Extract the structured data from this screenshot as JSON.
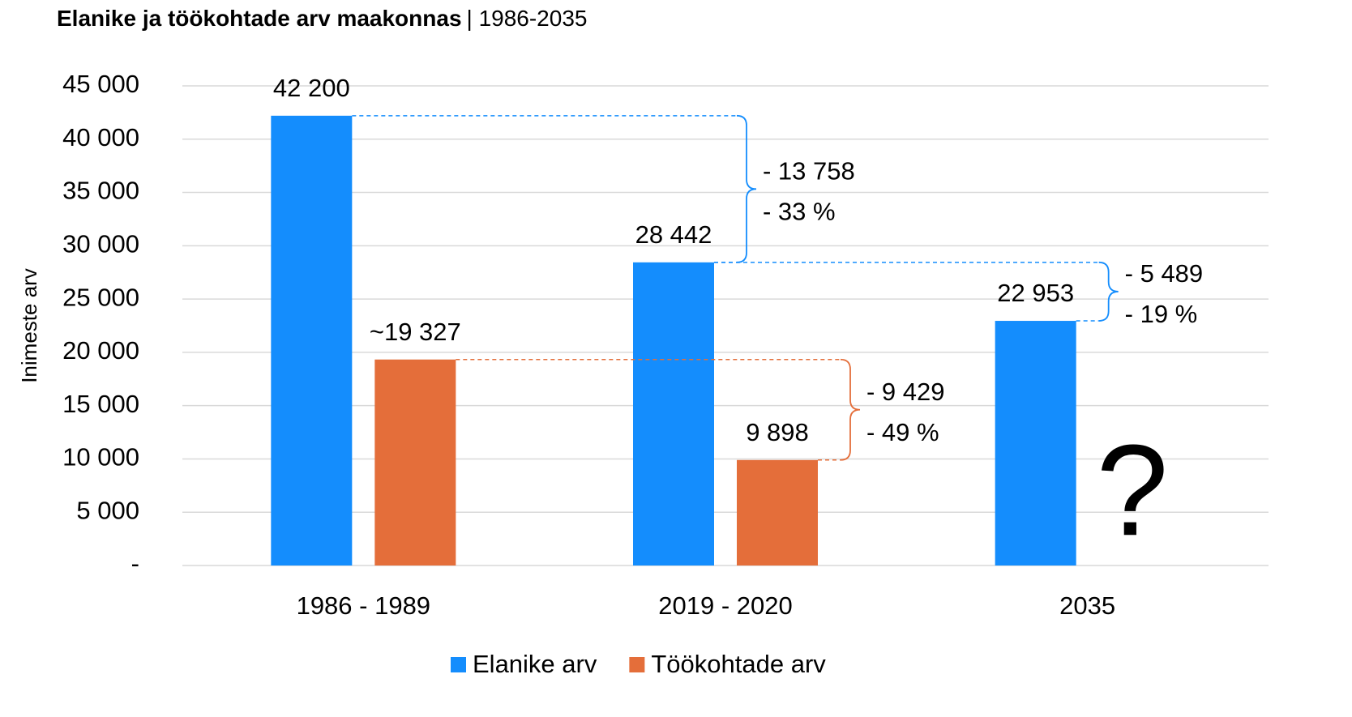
{
  "chart_data": {
    "type": "bar",
    "title": "Elanike ja töökohtade arv maakonnas",
    "subtitle": "| 1986-2035",
    "y_label": "Inimeste arv",
    "categories": [
      "1986 - 1989",
      "2019 - 2020",
      "2035"
    ],
    "series": [
      {
        "name": "Elanike arv",
        "color": "#148dfd",
        "values": [
          42200,
          28442,
          22953
        ],
        "value_labels": [
          "42 200",
          "28 442",
          "22 953"
        ]
      },
      {
        "name": "Töökohtade arv",
        "color": "#e46e3a",
        "values": [
          19327,
          9898,
          null
        ],
        "value_labels": [
          "~19 327",
          "9 898",
          null
        ]
      }
    ],
    "ylim": [
      0,
      45000
    ],
    "yticks": [
      {
        "value": 0,
        "label": "-"
      },
      {
        "value": 5000,
        "label": "5 000"
      },
      {
        "value": 10000,
        "label": "10 000"
      },
      {
        "value": 15000,
        "label": "15 000"
      },
      {
        "value": 20000,
        "label": "20 000"
      },
      {
        "value": 25000,
        "label": "25 000"
      },
      {
        "value": 30000,
        "label": "30 000"
      },
      {
        "value": 35000,
        "label": "35 000"
      },
      {
        "value": 40000,
        "label": "40 000"
      },
      {
        "value": 45000,
        "label": "45 000"
      }
    ],
    "grid": true,
    "legend": "bottom",
    "annotations": [
      {
        "lines": [
          "- 13 758",
          "- 33 %"
        ]
      },
      {
        "lines": [
          "- 5 489",
          "- 19 %"
        ]
      },
      {
        "lines": [
          "- 9 429",
          "- 49 %"
        ]
      },
      {
        "text": "?"
      }
    ]
  }
}
